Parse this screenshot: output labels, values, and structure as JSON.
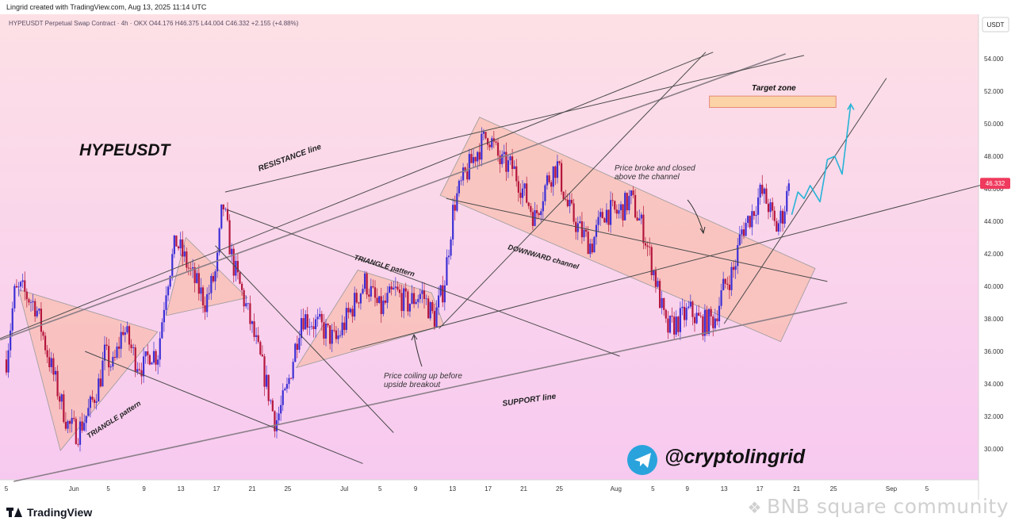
{
  "header": {
    "credit": "Lingrid created with TradingView.com, Aug 13, 2025 11:14 UTC"
  },
  "chart": {
    "symbol_info": "HYPEUSDT Perpetual Swap Contract · 4h · OKX O44.176 H46.375 L44.004 C46.332 +2.155 (+4.88%)",
    "currency": "USDT",
    "last_price": "46.332"
  },
  "annotations": {
    "title": "HYPEUSDT",
    "resistance": "RESISTANCE line",
    "support": "SUPPORT line",
    "triangle1": "TRIANGLE pattern",
    "triangle2": "TRIANGLE pattern",
    "downward_channel": "DOWNWARD channel",
    "broke_line1": "Price broke and closed",
    "broke_line2": "above the channel",
    "coil_line1": "Price coiling up before",
    "coil_line2": "upside breakout",
    "target": "Target zone",
    "handle": "@cryptolingrid"
  },
  "footer": {
    "logo": "TradingView",
    "watermark": "BNB square community"
  },
  "colors": {
    "bg_top": "#fde0e6",
    "bg_bottom": "#f7c9f0",
    "candle_up": "#3d2fd6",
    "candle_down": "#b5163d",
    "zone_fill": "#f9b9a4",
    "target_fill": "#fbd3a6",
    "projection": "#26b3d6",
    "price_tag": "#ef3a5d"
  },
  "chart_data": {
    "type": "candlestick",
    "title": "HYPEUSDT",
    "x_ticks": [
      "5",
      "Jun",
      "5",
      "9",
      "13",
      "17",
      "21",
      "25",
      "Jul",
      "5",
      "9",
      "13",
      "17",
      "21",
      "25",
      "Aug",
      "5",
      "9",
      "13",
      "17",
      "21",
      "25",
      "Sep",
      "5"
    ],
    "y_ticks": [
      "30.000",
      "32.000",
      "34.000",
      "36.000",
      "38.000",
      "40.000",
      "42.000",
      "44.000",
      "46.000",
      "48.000",
      "50.000",
      "52.000",
      "54.000"
    ],
    "ylim": [
      28.0,
      56.4
    ],
    "last_close": 46.332,
    "interval": "4h",
    "path_keypoints": [
      {
        "x": 0,
        "y": 35.5
      },
      {
        "x": 0.65,
        "y": 39.5
      },
      {
        "x": 1.2,
        "y": 39.8
      },
      {
        "x": 2.4,
        "y": 38.8
      },
      {
        "x": 3.3,
        "y": 36.0
      },
      {
        "x": 4.4,
        "y": 33.0
      },
      {
        "x": 5.0,
        "y": 31.5
      },
      {
        "x": 5.8,
        "y": 31.0
      },
      {
        "x": 6.8,
        "y": 32.5
      },
      {
        "x": 7.6,
        "y": 34.2
      },
      {
        "x": 8.0,
        "y": 35.8
      },
      {
        "x": 8.7,
        "y": 35.0
      },
      {
        "x": 9.5,
        "y": 37.5
      },
      {
        "x": 10.5,
        "y": 35.5
      },
      {
        "x": 11.2,
        "y": 35.0
      },
      {
        "x": 11.7,
        "y": 36.0
      },
      {
        "x": 12.3,
        "y": 35.7
      },
      {
        "x": 13.0,
        "y": 40.0
      },
      {
        "x": 13.8,
        "y": 42.8
      },
      {
        "x": 14.6,
        "y": 41.5
      },
      {
        "x": 15.2,
        "y": 40.5
      },
      {
        "x": 16.2,
        "y": 39.0
      },
      {
        "x": 17.1,
        "y": 41.0
      },
      {
        "x": 17.6,
        "y": 45.2
      },
      {
        "x": 18.4,
        "y": 41.5
      },
      {
        "x": 19.6,
        "y": 38.5
      },
      {
        "x": 21.0,
        "y": 34.5
      },
      {
        "x": 21.9,
        "y": 31.6
      },
      {
        "x": 22.8,
        "y": 33.5
      },
      {
        "x": 24.0,
        "y": 38.2
      },
      {
        "x": 25.6,
        "y": 37.5
      },
      {
        "x": 26.8,
        "y": 36.6
      },
      {
        "x": 28.0,
        "y": 38.5
      },
      {
        "x": 29.2,
        "y": 40.3
      },
      {
        "x": 30.4,
        "y": 38.5
      },
      {
        "x": 31.6,
        "y": 39.7
      },
      {
        "x": 32.6,
        "y": 38.9
      },
      {
        "x": 33.8,
        "y": 39.6
      },
      {
        "x": 34.8,
        "y": 38.0
      },
      {
        "x": 35.6,
        "y": 40.0
      },
      {
        "x": 36.4,
        "y": 45.0
      },
      {
        "x": 37.2,
        "y": 46.6
      },
      {
        "x": 38.2,
        "y": 48.2
      },
      {
        "x": 39.2,
        "y": 49.4
      },
      {
        "x": 40.2,
        "y": 47.6
      },
      {
        "x": 41.2,
        "y": 47.3
      },
      {
        "x": 42.2,
        "y": 45.6
      },
      {
        "x": 43.0,
        "y": 44.2
      },
      {
        "x": 44.0,
        "y": 46.5
      },
      {
        "x": 44.8,
        "y": 47.5
      },
      {
        "x": 45.6,
        "y": 45.0
      },
      {
        "x": 46.6,
        "y": 43.5
      },
      {
        "x": 47.6,
        "y": 42.5
      },
      {
        "x": 48.6,
        "y": 44.6
      },
      {
        "x": 49.8,
        "y": 44.5
      },
      {
        "x": 50.8,
        "y": 45.4
      },
      {
        "x": 51.8,
        "y": 43.5
      },
      {
        "x": 52.8,
        "y": 40.5
      },
      {
        "x": 53.7,
        "y": 37.3
      },
      {
        "x": 54.6,
        "y": 37.8
      },
      {
        "x": 55.6,
        "y": 38.5
      },
      {
        "x": 56.6,
        "y": 37.7
      },
      {
        "x": 57.6,
        "y": 38.0
      },
      {
        "x": 58.4,
        "y": 40.0
      },
      {
        "x": 59.2,
        "y": 41.0
      },
      {
        "x": 59.8,
        "y": 43.4
      },
      {
        "x": 60.6,
        "y": 44.4
      },
      {
        "x": 61.4,
        "y": 45.8
      },
      {
        "x": 62.0,
        "y": 45.0
      },
      {
        "x": 62.6,
        "y": 43.5
      },
      {
        "x": 63.2,
        "y": 44.5
      },
      {
        "x": 63.7,
        "y": 46.3
      }
    ],
    "projection_path": [
      {
        "x": 63.9,
        "y": 44.4
      },
      {
        "x": 64.4,
        "y": 45.8
      },
      {
        "x": 64.9,
        "y": 45.4
      },
      {
        "x": 65.4,
        "y": 46.2
      },
      {
        "x": 66.2,
        "y": 45.2
      },
      {
        "x": 66.8,
        "y": 47.8
      },
      {
        "x": 67.4,
        "y": 48.0
      },
      {
        "x": 68.0,
        "y": 46.9
      },
      {
        "x": 68.7,
        "y": 51.2
      }
    ],
    "target_zone": [
      51.0,
      51.7
    ],
    "lines": [
      {
        "name": "RESISTANCE line",
        "p1": [
          -0.5,
          36.7
        ],
        "p2": [
          63.4,
          54.3
        ]
      },
      {
        "name": "SUPPORT line",
        "p1": [
          0.6,
          28.0
        ],
        "p2": [
          68.4,
          39.0
        ]
      },
      {
        "name": "upper resistance",
        "p1": [
          17.8,
          45.8
        ],
        "p2": [
          64.9,
          54.2
        ]
      },
      {
        "name": "support to target",
        "p1": [
          58.4,
          37.7
        ],
        "p2": [
          71.6,
          52.8
        ]
      },
      {
        "name": "trend up",
        "p1": [
          35.2,
          37.4
        ],
        "p2": [
          56.9,
          54.4
        ]
      },
      {
        "name": "projection up",
        "p1": [
          -0.8,
          36.7
        ],
        "p2": [
          57.5,
          54.4
        ]
      },
      {
        "name": "rising mid",
        "p1": [
          28.0,
          36.1
        ],
        "p2": [
          81.2,
          46.6
        ]
      },
      {
        "name": "upper channel",
        "p1": [
          35.8,
          45.4
        ],
        "p2": [
          66.8,
          40.3
        ]
      },
      {
        "name": "triangle diagonal",
        "p1": [
          18.0,
          44.7
        ],
        "p2": [
          49.9,
          35.7
        ]
      },
      {
        "name": "long diagonal",
        "p1": [
          6.4,
          36.0
        ],
        "p2": [
          29.0,
          29.1
        ]
      },
      {
        "name": "steep diagonal",
        "p1": [
          17.0,
          42.5
        ],
        "p2": [
          31.5,
          31.0
        ]
      }
    ],
    "zones": [
      {
        "name": "TRIANGLE pattern 1",
        "points": [
          [
            1.0,
            39.8
          ],
          [
            4.4,
            29.9
          ],
          [
            12.3,
            37.2
          ]
        ]
      },
      {
        "name": "TRIANGLE pattern 2",
        "points": [
          [
            13.0,
            38.2
          ],
          [
            14.6,
            43.0
          ],
          [
            19.6,
            39.3
          ]
        ]
      },
      {
        "name": "TRIANGLE pattern 3",
        "points": [
          [
            23.6,
            35.0
          ],
          [
            28.6,
            41.0
          ],
          [
            34.6,
            39.6
          ],
          [
            35.6,
            37.6
          ]
        ]
      },
      {
        "name": "DOWNWARD channel",
        "points": [
          [
            38.5,
            50.4
          ],
          [
            65.8,
            41.1
          ],
          [
            63.0,
            36.6
          ],
          [
            35.3,
            45.6
          ]
        ]
      }
    ]
  }
}
